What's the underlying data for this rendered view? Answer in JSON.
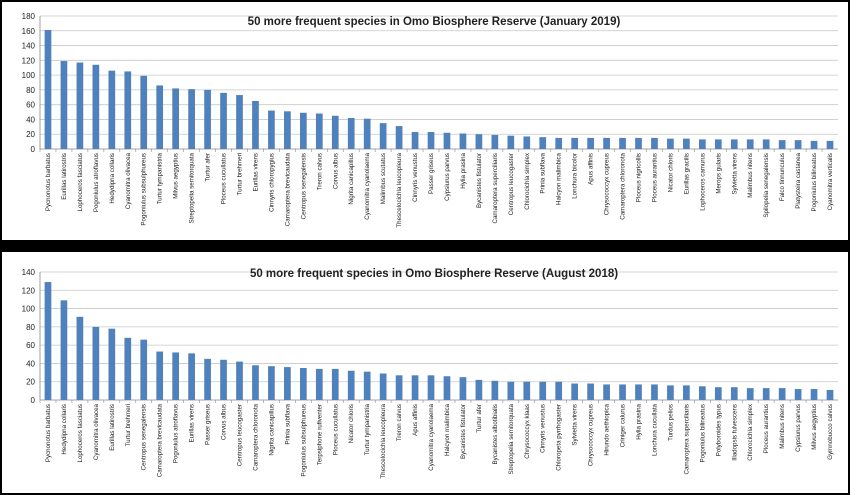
{
  "chart_data": [
    {
      "type": "bar",
      "title": "50 more frequent species in Omo Biosphere Reserve (January 2019)",
      "xlabel": "",
      "ylabel": "",
      "ylim": [
        0,
        180
      ],
      "yticks": [
        0,
        20,
        40,
        60,
        80,
        100,
        120,
        140,
        160,
        180
      ],
      "grid": true,
      "color": "#4F81BD",
      "categories": [
        "Pycnonotus barbatus",
        "Eurillas latirostris",
        "Lophoceros fasciatus",
        "Pogoniulus atroflavus",
        "Hedydipna collaris",
        "Cyanomitra olivacea",
        "Pogoniulus subsulphureus",
        "Turtur tympanistria",
        "Milvus aegyptius",
        "Streptopelia semitorquata",
        "Turtur afer",
        "Ploceus cucullatus",
        "Turtur brehmeri",
        "Eurillas virens",
        "Cinnyris chloropygius",
        "Camaroptera brevicaudata",
        "Centropus senegalensis",
        "Treron calvus",
        "Corvus albus",
        "Nigrita canicapillus",
        "Cyanomitra cyanolaema",
        "Malimbus scutatus",
        "Thescelocichla leucopleura",
        "Cinnyris venustus",
        "Passer griseus",
        "Cypsiurus parvus",
        "Hylia prasina",
        "Bycanistes fistulator",
        "Camaroptera superciliaris",
        "Centropus leucogaster",
        "Chlorocichla simplex",
        "Prinia subflava",
        "Halcyon malimbica",
        "Lonchura bicolor",
        "Apus affinis",
        "Chrysococcyx cupreus",
        "Camaroptera chloronota",
        "Ploceus nigricollis",
        "Ploceus aurantius",
        "Nicator chloris",
        "Eurillas gracilis",
        "Lophoceros camurus",
        "Merops gularis",
        "Sylvietta virens",
        "Malimbus nitens",
        "Spilopelia senegalensis",
        "Falco tinnunculus",
        "Platysteira castanea",
        "Pogoniulus bilineatus",
        "Cyanomitra verticalis"
      ],
      "values": [
        161,
        119,
        117,
        114,
        106,
        105,
        99,
        86,
        82,
        81,
        80,
        76,
        73,
        65,
        52,
        51,
        49,
        48,
        45,
        42,
        41,
        35,
        31,
        23,
        23,
        22,
        21,
        20,
        19,
        18,
        17,
        16,
        15,
        15,
        15,
        15,
        15,
        15,
        15,
        14,
        14,
        13,
        13,
        13,
        13,
        13,
        12,
        12,
        11,
        11
      ]
    },
    {
      "type": "bar",
      "title": "50 more frequent species in Omo Biosphere Reserve (August 2018)",
      "xlabel": "",
      "ylabel": "",
      "ylim": [
        0,
        140
      ],
      "yticks": [
        0,
        20,
        40,
        60,
        80,
        100,
        120,
        140
      ],
      "grid": true,
      "color": "#4F81BD",
      "categories": [
        "Pycnonotus barbatus",
        "Hedydipna collaris",
        "Lophoceros fasciatus",
        "Cyanomitra olivacea",
        "Eurillas latirostris",
        "Turtur brehmeri",
        "Centropus senegalensis",
        "Camaroptera brevicaudata",
        "Pogoniulus atroflavus",
        "Eurillas virens",
        "Passer griseus",
        "Corvus albus",
        "Centropus leucogaster",
        "Camaroptera chloronota",
        "Nigrita canicapillus",
        "Prinia subflava",
        "Pogoniulus subsulphureus",
        "Terpsiphone rufiventer",
        "Ploceus cucullatus",
        "Nicator chloris",
        "Turtur tympanistria",
        "Thescelocichla leucopleura",
        "Treron calvus",
        "Apus affinis",
        "Cyanomitra cyanolaema",
        "Halcyon malimbica",
        "Bycanistes fistulator",
        "Turtur afer",
        "Bycanistes albotibialis",
        "Streptopelia semitorquata",
        "Chrysococcyx klaas",
        "Cinnyris venustus",
        "Chloropeta pyrrhogaster",
        "Sylvietta virens",
        "Chrysococcyx cupreus",
        "Hirundo aethiopica",
        "Criniger calurus",
        "Hylia prasina",
        "Lonchura cucullata",
        "Turdus pelios",
        "Camaroptera superciliaris",
        "Pogoniulus bilineatus",
        "Polyboroides typus",
        "Illadopsis fulvescens",
        "Chlorocichla simplex",
        "Ploceus aurantius",
        "Malimbus nitens",
        "Cypsiurus parvus",
        "Milvus aegyptius",
        "Gymnobucco calvus"
      ],
      "values": [
        129,
        109,
        91,
        80,
        78,
        68,
        66,
        53,
        52,
        51,
        45,
        44,
        42,
        38,
        37,
        36,
        35,
        34,
        34,
        32,
        31,
        29,
        27,
        27,
        27,
        26,
        25,
        22,
        21,
        20,
        20,
        20,
        20,
        18,
        18,
        17,
        17,
        17,
        17,
        16,
        16,
        15,
        14,
        14,
        13,
        13,
        13,
        12,
        12,
        11
      ]
    }
  ]
}
